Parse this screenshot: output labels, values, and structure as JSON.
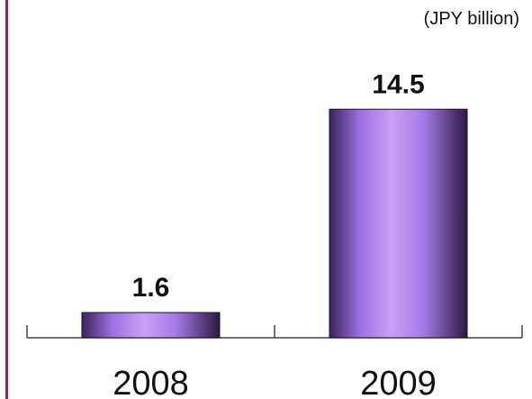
{
  "chart_data": {
    "type": "bar",
    "categories": [
      "2008",
      "2009"
    ],
    "values": [
      1.6,
      14.5
    ],
    "value_labels": [
      "1.6",
      "14.5"
    ],
    "unit": "(JPY billion)",
    "title": "",
    "xlabel": "",
    "ylabel": "",
    "ylim": [
      0,
      18
    ],
    "grid": false,
    "legend": "none",
    "colors": {
      "bar_light": "#c9a0f5",
      "bar_mid": "#9d6fe0",
      "bar_dark": "#2b1a40",
      "frame": "#7a2e6e"
    }
  }
}
